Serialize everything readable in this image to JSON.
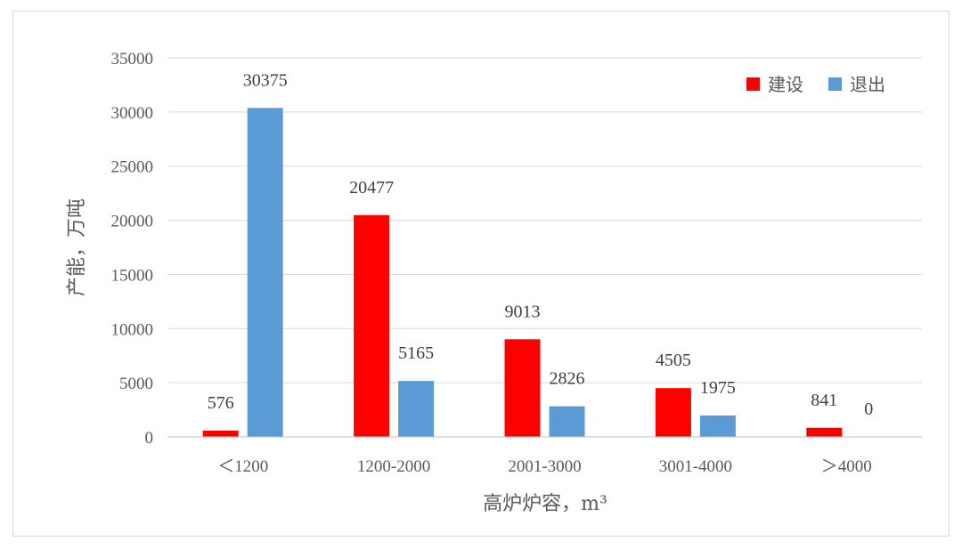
{
  "chart_data": {
    "type": "bar",
    "title": "",
    "xlabel": "高炉炉容，m³",
    "ylabel": "产能，万吨",
    "categories": [
      "＜1200",
      "1200-2000",
      "2001-3000",
      "3001-4000",
      "＞4000"
    ],
    "series": [
      {
        "name": "建设",
        "color": "#ff0000",
        "values": [
          576,
          20477,
          9013,
          4505,
          841
        ]
      },
      {
        "name": "退出",
        "color": "#5b9bd5",
        "values": [
          30375,
          5165,
          2826,
          1975,
          0
        ]
      }
    ],
    "ylim": [
      0,
      35000
    ],
    "yticks": [
      "0",
      "5000",
      "10000",
      "15000",
      "20000",
      "25000",
      "30000",
      "35000"
    ],
    "grid": true,
    "legend_position": "top-right"
  }
}
